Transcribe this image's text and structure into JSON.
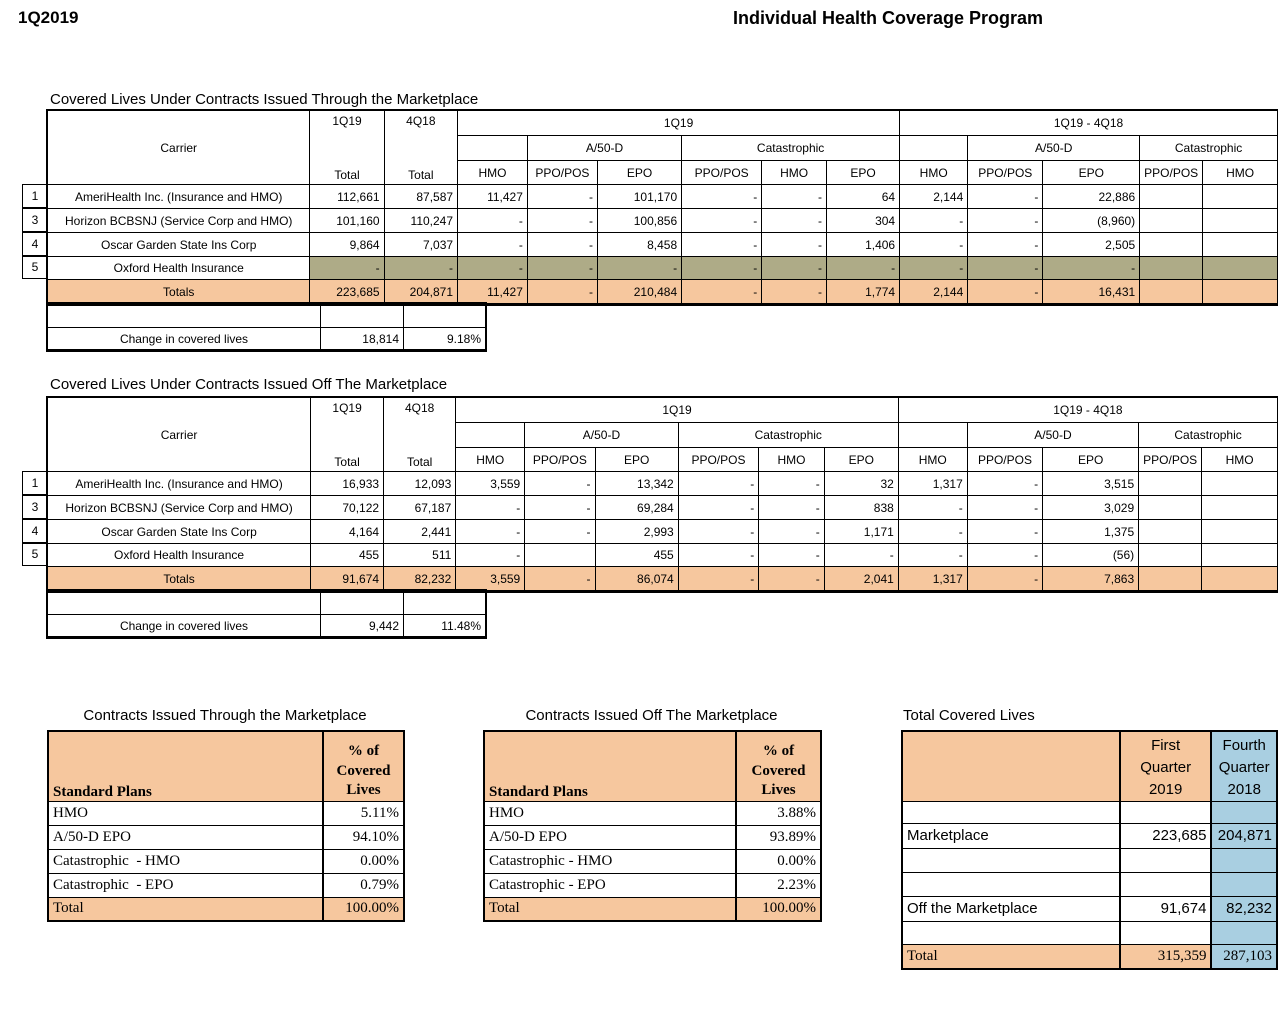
{
  "header": {
    "quarter": "1Q2019",
    "title": "Individual Health Coverage Program"
  },
  "colors": {
    "orange": "#f6c79e",
    "olive": "#aeab87",
    "blue": "#a9cfe1"
  },
  "covered_lives_tables": [
    {
      "id": "marketplace",
      "title": "Covered Lives Under Contracts Issued Through the Marketplace",
      "carrier_header": "Carrier",
      "period_columns": [
        {
          "label": "1Q19",
          "sub_label": "Total"
        },
        {
          "label": "4Q18",
          "sub_label": "Total"
        }
      ],
      "group_headers": [
        "1Q19",
        "1Q19 - 4Q18"
      ],
      "subgroup_headers": [
        "A/50-D",
        "Catastrophic",
        "A/50-D",
        "Catastrophic"
      ],
      "plan_headers": [
        "HMO",
        "PPO/POS",
        "EPO",
        "PPO/POS",
        "HMO",
        "EPO",
        "HMO",
        "PPO/POS",
        "EPO",
        "PPO/POS",
        "HMO"
      ],
      "rows": [
        {
          "num": "1",
          "carrier": "AmeriHealth  Inc. (Insurance and HMO)",
          "shaded": false,
          "values": [
            "112,661",
            "87,587",
            "11,427",
            "-",
            "101,170",
            "-",
            "-",
            "64",
            "2,144",
            "-",
            "22,886",
            "",
            ""
          ]
        },
        {
          "num": "3",
          "carrier": "Horizon BCBSNJ (Service Corp and HMO)",
          "shaded": false,
          "values": [
            "101,160",
            "110,247",
            "-",
            "-",
            "100,856",
            "-",
            "-",
            "304",
            "-",
            "-",
            "(8,960)",
            "",
            ""
          ]
        },
        {
          "num": "4",
          "carrier": "Oscar Garden State Ins Corp",
          "shaded": false,
          "values": [
            "9,864",
            "7,037",
            "-",
            "-",
            "8,458",
            "-",
            "-",
            "1,406",
            "-",
            "-",
            "2,505",
            "",
            ""
          ]
        },
        {
          "num": "5",
          "carrier": "Oxford Health Insurance",
          "shaded": true,
          "values": [
            "-",
            "-",
            "-",
            "-",
            "-",
            "-",
            "-",
            "-",
            "-",
            "-",
            "-",
            "",
            ""
          ]
        }
      ],
      "totals_row": {
        "label": "Totals",
        "values": [
          "223,685",
          "204,871",
          "11,427",
          "-",
          "210,484",
          "-",
          "-",
          "1,774",
          "2,144",
          "-",
          "16,431",
          "",
          ""
        ]
      },
      "change_row": {
        "label": "Change in covered lives",
        "values": [
          "18,814",
          "9.18%"
        ]
      }
    },
    {
      "id": "off-marketplace",
      "title": "Covered Lives Under Contracts Issued Off The Marketplace",
      "carrier_header": "Carrier",
      "period_columns": [
        {
          "label": "1Q19",
          "sub_label": "Total"
        },
        {
          "label": "4Q18",
          "sub_label": "Total"
        }
      ],
      "group_headers": [
        "1Q19",
        "1Q19 - 4Q18"
      ],
      "subgroup_headers": [
        "A/50-D",
        "Catastrophic",
        "A/50-D",
        "Catastrophic"
      ],
      "plan_headers": [
        "HMO",
        "PPO/POS",
        "EPO",
        "PPO/POS",
        "HMO",
        "EPO",
        "HMO",
        "PPO/POS",
        "EPO",
        "PPO/POS",
        "HMO"
      ],
      "rows": [
        {
          "num": "1",
          "carrier": "AmeriHealth  Inc. (Insurance and HMO)",
          "shaded": false,
          "values": [
            "16,933",
            "12,093",
            "3,559",
            "-",
            "13,342",
            "-",
            "-",
            "32",
            "1,317",
            "-",
            "3,515",
            "",
            ""
          ]
        },
        {
          "num": "3",
          "carrier": "Horizon BCBSNJ (Service Corp and HMO)",
          "shaded": false,
          "values": [
            "70,122",
            "67,187",
            "-",
            "-",
            "69,284",
            "-",
            "-",
            "838",
            "-",
            "-",
            "3,029",
            "",
            ""
          ]
        },
        {
          "num": "4",
          "carrier": "Oscar Garden State Ins Corp",
          "shaded": false,
          "values": [
            "4,164",
            "2,441",
            "-",
            "-",
            "2,993",
            "-",
            "-",
            "1,171",
            "-",
            "-",
            "1,375",
            "",
            ""
          ]
        },
        {
          "num": "5",
          "carrier": "Oxford Health Insurance",
          "shaded": false,
          "values": [
            "455",
            "511",
            "-",
            "",
            "455",
            "-",
            "-",
            "-",
            "-",
            "-",
            "(56)",
            "",
            ""
          ]
        }
      ],
      "totals_row": {
        "label": "Totals",
        "values": [
          "91,674",
          "82,232",
          "3,559",
          "-",
          "86,074",
          "-",
          "-",
          "2,041",
          "1,317",
          "-",
          "7,863",
          "",
          ""
        ]
      },
      "change_row": {
        "label": "Change in covered lives",
        "values": [
          "9,442",
          "11.48%"
        ]
      }
    }
  ],
  "plan_share_tables": [
    {
      "title": "Contracts Issued Through the Marketplace",
      "col_headers": [
        "Standard Plans",
        "% of\nCovered\nLives"
      ],
      "rows": [
        [
          "HMO",
          "5.11%"
        ],
        [
          "A/50-D EPO",
          "94.10%"
        ],
        [
          "Catastrophic  - HMO",
          "0.00%"
        ],
        [
          "Catastrophic  - EPO",
          "0.79%"
        ]
      ],
      "total_row": [
        "Total",
        "100.00%"
      ]
    },
    {
      "title": "Contracts Issued Off The Marketplace",
      "col_headers": [
        "Standard Plans",
        "% of\nCovered\nLives"
      ],
      "rows": [
        [
          "HMO",
          "3.88%"
        ],
        [
          "A/50-D EPO",
          "93.89%"
        ],
        [
          "Catastrophic - HMO",
          "0.00%"
        ],
        [
          "Catastrophic - EPO",
          "2.23%"
        ]
      ],
      "total_row": [
        "Total",
        "100.00%"
      ]
    }
  ],
  "total_covered_lives": {
    "title": "Total Covered Lives",
    "col_headers": [
      "",
      "First Quarter 2019",
      "Fourth Quarter 2018"
    ],
    "rows": [
      {
        "label": "",
        "q1": "",
        "q4": "",
        "is_total": false
      },
      {
        "label": "Marketplace",
        "q1": "223,685",
        "q4": "204,871",
        "is_total": false
      },
      {
        "label": "",
        "q1": "",
        "q4": "",
        "is_total": false
      },
      {
        "label": "",
        "q1": "",
        "q4": "",
        "is_total": false
      },
      {
        "label": "Off the Marketplace",
        "q1": "91,674",
        "q4": "82,232",
        "is_total": false
      },
      {
        "label": "",
        "q1": "",
        "q4": "",
        "is_total": false
      },
      {
        "label": "Total",
        "q1": "315,359",
        "q4": "287,103",
        "is_total": true
      }
    ]
  }
}
